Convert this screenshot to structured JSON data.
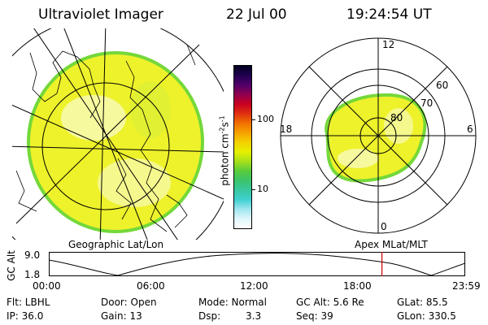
{
  "header": {
    "title": "Ultraviolet Imager",
    "date": "22 Jul 00",
    "time": "19:24:54 UT"
  },
  "geo_panel": {
    "caption": "Geographic Lat/Lon"
  },
  "colorbar": {
    "unit_label": "photon cm",
    "unit_exp1": "-2",
    "unit_s": "s",
    "unit_exp2": "-1",
    "tick_high": "100",
    "tick_low": "10",
    "gradient": [
      "#ffffff",
      "#dff6fb",
      "#9fe6f0",
      "#3fd0d0",
      "#39c8a0",
      "#3ac46a",
      "#59cc3b",
      "#a6e01b",
      "#e6f000",
      "#f4d000",
      "#f6a200",
      "#f07000",
      "#e03010",
      "#c80020",
      "#900050",
      "#50006a",
      "#200050",
      "#000020"
    ]
  },
  "polar_panel": {
    "caption": "Apex MLat/MLT",
    "mlt_labels": {
      "top": "12",
      "left": "18",
      "right": "6",
      "bottom": "0"
    },
    "lat_labels": [
      "60",
      "70",
      "80"
    ]
  },
  "timeline": {
    "ylabel": "GC Alt",
    "ymax": "9.0",
    "ymin": "1.8",
    "ticks": [
      "00:00",
      "06:00",
      "12:00",
      "18:00",
      "23:59"
    ],
    "marker_fraction": 0.8
  },
  "footer": {
    "filt": "Flt: LBHL",
    "ip": "IP: 36.0",
    "door": "Door: Open",
    "gain": "Gain: 13",
    "mode_label": "Mode: Normal",
    "dsp_label": "Dsp:",
    "dsp_value": "3.3",
    "gcalt": "GC Alt: 5.6 Re",
    "seq": "Seq: 39",
    "glat": "GLat: 85.5",
    "glon": "GLon: 330.5"
  },
  "colors": {
    "aurora_fill": "#eef22a",
    "aurora_edge": "#74d83a",
    "marker": "#cc0000"
  }
}
